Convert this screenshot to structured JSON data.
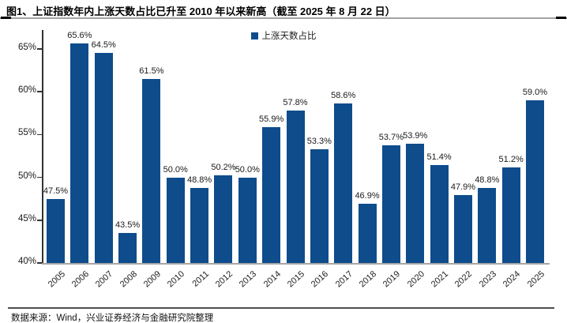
{
  "figure": {
    "title": "图1、上证指数年内上涨天数占比已升至 2010 年以来新高（截至 2025 年 8 月 22 日）",
    "source_note": "数据来源：Wind，兴业证券经济与金融研究院整理"
  },
  "legend": {
    "label": "上涨天数占比"
  },
  "colors": {
    "bar": "#0E4C8C",
    "axis": "#333333",
    "baseline": "#A6A6A6"
  },
  "chart_data": {
    "type": "bar",
    "title": "图1、上证指数年内上涨天数占比已升至 2010 年以来新高（截至 2025 年 8 月 22 日）",
    "series_name": "上涨天数占比",
    "categories": [
      "2005",
      "2006",
      "2007",
      "2008",
      "2009",
      "2010",
      "2011",
      "2012",
      "2013",
      "2014",
      "2015",
      "2016",
      "2017",
      "2018",
      "2019",
      "2020",
      "2021",
      "2022",
      "2023",
      "2024",
      "2025"
    ],
    "values": [
      47.5,
      65.6,
      64.5,
      43.5,
      61.5,
      50.0,
      48.8,
      50.2,
      50.0,
      55.9,
      57.8,
      53.3,
      58.6,
      46.9,
      53.7,
      53.9,
      51.4,
      47.9,
      48.8,
      51.2,
      59.0
    ],
    "value_label_suffix": "%",
    "xlabel": "",
    "ylabel": "",
    "ylim": [
      40,
      67
    ],
    "yticks": [
      40,
      45,
      50,
      55,
      60,
      65
    ],
    "ytick_suffix": "%",
    "grid": false,
    "data_labels": true,
    "legend_position": "top-center",
    "x_tick_rotation": -42
  }
}
